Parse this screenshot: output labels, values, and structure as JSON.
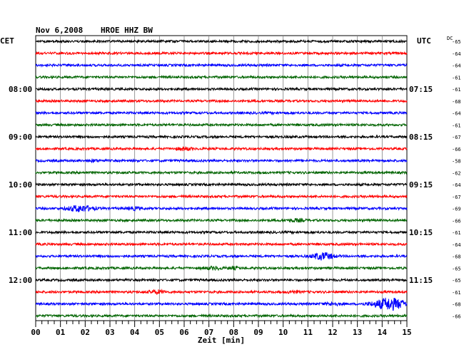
{
  "header": {
    "date": "Nov 6,2008",
    "station": "HROE HHZ BW",
    "left_zone": "CET",
    "right_zone": "UTC",
    "dc_label": "DC"
  },
  "chart_data": {
    "type": "line",
    "title": "Nov 6,2008   HROE HHZ BW",
    "xlabel": "Zeit [min]",
    "xlim": [
      0,
      15
    ],
    "x_ticks": [
      "00",
      "01",
      "02",
      "03",
      "04",
      "05",
      "06",
      "07",
      "08",
      "09",
      "10",
      "11",
      "12",
      "13",
      "14",
      "15"
    ],
    "traces_per_hour": 4,
    "trace_count": 24,
    "trace_colors": [
      "#000000",
      "#ff0000",
      "#0000ff",
      "#006400"
    ],
    "left_hour_labels": [
      {
        "trace": 4,
        "label": "08:00"
      },
      {
        "trace": 8,
        "label": "09:00"
      },
      {
        "trace": 12,
        "label": "10:00"
      },
      {
        "trace": 16,
        "label": "11:00"
      },
      {
        "trace": 20,
        "label": "12:00"
      }
    ],
    "right_hour_labels": [
      {
        "trace": 4,
        "label": "07:15"
      },
      {
        "trace": 8,
        "label": "08:15"
      },
      {
        "trace": 12,
        "label": "09:15"
      },
      {
        "trace": 16,
        "label": "10:15"
      },
      {
        "trace": 20,
        "label": "11:15"
      }
    ],
    "dc_offsets": [
      -65,
      -64,
      -64,
      -61,
      -61,
      -68,
      -64,
      -61,
      -67,
      -66,
      -58,
      -62,
      -64,
      -67,
      -69,
      -66,
      -61,
      -64,
      -68,
      -65,
      -65,
      -61,
      -68,
      -66
    ],
    "events": [
      {
        "trace": 9,
        "minute": 6.0,
        "amp": 1.8,
        "width": 0.4
      },
      {
        "trace": 10,
        "minute": 2.3,
        "amp": 1.4,
        "width": 0.3
      },
      {
        "trace": 14,
        "minute": 1.8,
        "amp": 4.0,
        "width": 0.7
      },
      {
        "trace": 14,
        "minute": 4.0,
        "amp": 1.6,
        "width": 0.4
      },
      {
        "trace": 15,
        "minute": 10.5,
        "amp": 1.5,
        "width": 0.5
      },
      {
        "trace": 18,
        "minute": 11.6,
        "amp": 4.5,
        "width": 0.6
      },
      {
        "trace": 19,
        "minute": 7.2,
        "amp": 1.6,
        "width": 0.5
      },
      {
        "trace": 19,
        "minute": 8.0,
        "amp": 1.4,
        "width": 0.3
      },
      {
        "trace": 21,
        "minute": 4.9,
        "amp": 2.2,
        "width": 0.4
      },
      {
        "trace": 21,
        "minute": 10.4,
        "amp": 1.6,
        "width": 0.3
      },
      {
        "trace": 22,
        "minute": 14.3,
        "amp": 8.0,
        "width": 0.9
      },
      {
        "trace": 22,
        "minute": 12.0,
        "amp": 1.5,
        "width": 0.5
      }
    ]
  }
}
